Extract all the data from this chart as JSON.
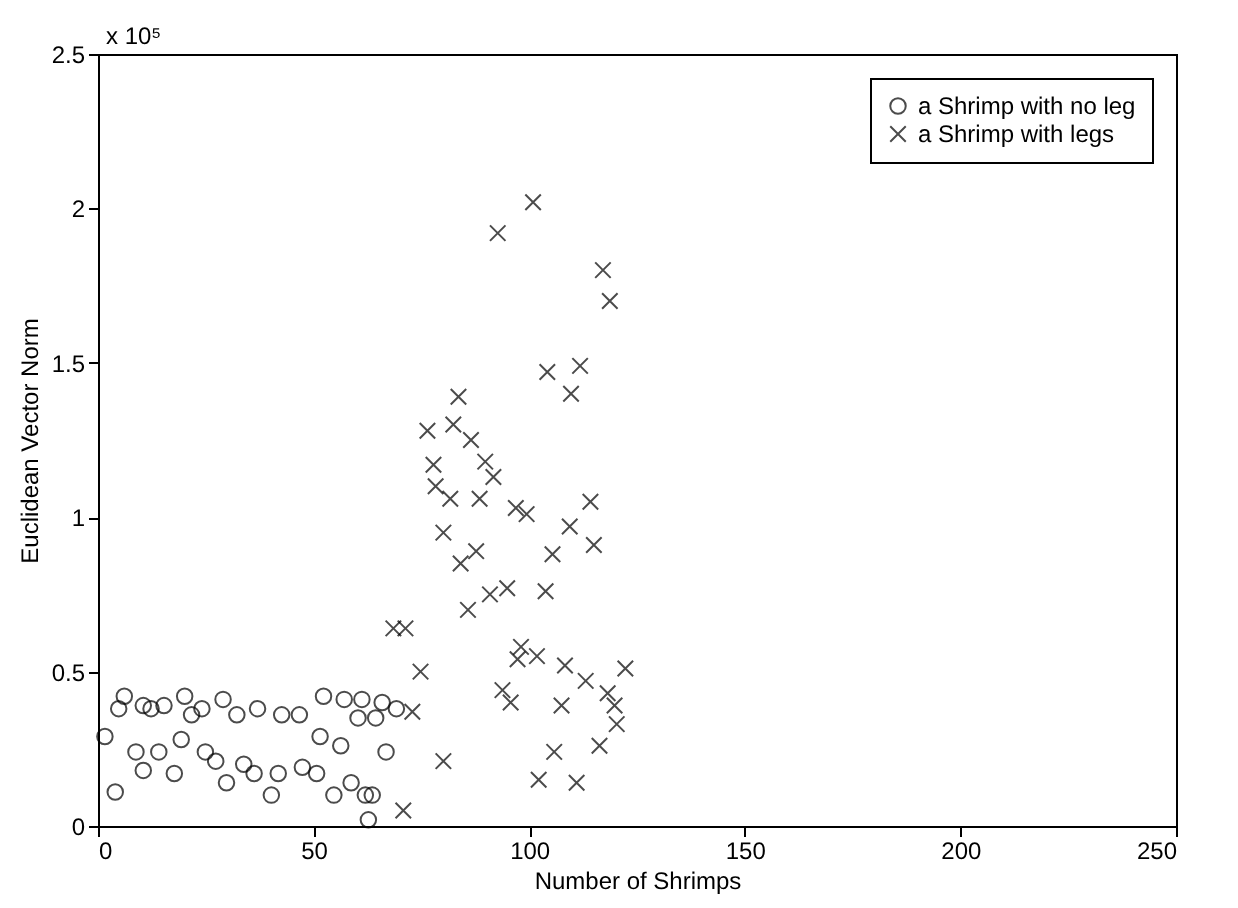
{
  "chart_data": {
    "type": "scatter",
    "xlabel": "Number of Shrimps",
    "ylabel": "Euclidean Vector Norm",
    "annotations": [
      "x 10⁵"
    ],
    "xlim": [
      0,
      250
    ],
    "xticks": [
      0,
      50,
      100,
      150,
      200,
      250
    ],
    "ylim": [
      0,
      2.5
    ],
    "yticks": [
      0,
      0.5,
      1,
      1.5,
      2,
      2.5
    ],
    "grid": false,
    "legend": "top right",
    "series": [
      {
        "name": "a Shrimp with no leg",
        "color": "#000000",
        "marker": "circle",
        "x": [
          1.6,
          4.0,
          6.1,
          4.8,
          8.8,
          10.5,
          10.5,
          12.3,
          14.1,
          15.3,
          17.7,
          19.3,
          20.1,
          21.7,
          24.1,
          24.9,
          27.3,
          29,
          29.8,
          32.2,
          33.8,
          37.0,
          36.2,
          40.2,
          42.6,
          41.8,
          46.7,
          47.4,
          50.7,
          52.3,
          51.5,
          54.7,
          57.1,
          56.3,
          58.7,
          60.3,
          61.2,
          62.0,
          62.7,
          65.9,
          66.8,
          69.2,
          64.4,
          63.6
        ],
        "values": [
          0.29,
          0.11,
          0.42,
          0.38,
          0.24,
          0.18,
          0.39,
          0.38,
          0.24,
          0.39,
          0.17,
          0.28,
          0.42,
          0.36,
          0.38,
          0.24,
          0.21,
          0.41,
          0.14,
          0.36,
          0.2,
          0.38,
          0.17,
          0.1,
          0.36,
          0.17,
          0.36,
          0.19,
          0.17,
          0.42,
          0.29,
          0.1,
          0.41,
          0.26,
          0.14,
          0.35,
          0.41,
          0.1,
          0.02,
          0.4,
          0.24,
          0.38,
          0.35,
          0.1
        ]
      },
      {
        "name": "a Shrimp with legs",
        "color": "#000000",
        "marker": "cross",
        "x": [
          117.1,
          118.7,
          104.2,
          111.8,
          109.7,
          83.6,
          76.4,
          82.4,
          86.5,
          77.8,
          89.8,
          91.7,
          78.3,
          81.7,
          88.5,
          96.9,
          99.4,
          114.2,
          109.4,
          115.0,
          80.1,
          87.7,
          105.4,
          100.9,
          92.7,
          84.1,
          85.8,
          90.9,
          94.9,
          103.8,
          71.3,
          74.8,
          98.1,
          97.3,
          101.8,
          108.3,
          113.1,
          118.2,
          122.3,
          119.8,
          93.8,
          95.7,
          107.5,
          120.3,
          116.3,
          105.8,
          80.1,
          102.2,
          111.0,
          72.9,
          70.8,
          68.5
        ],
        "values": [
          1.8,
          1.7,
          1.47,
          1.49,
          1.4,
          1.39,
          1.28,
          1.3,
          1.25,
          1.17,
          1.18,
          1.13,
          1.1,
          1.06,
          1.06,
          1.03,
          1.01,
          1.05,
          0.97,
          0.91,
          0.95,
          0.89,
          0.88,
          2.02,
          1.92,
          0.85,
          0.7,
          0.75,
          0.77,
          0.76,
          0.64,
          0.5,
          0.58,
          0.54,
          0.55,
          0.52,
          0.47,
          0.43,
          0.51,
          0.39,
          0.44,
          0.4,
          0.39,
          0.33,
          0.26,
          0.24,
          0.21,
          0.15,
          0.14,
          0.37,
          0.05,
          0.64
        ]
      }
    ]
  }
}
